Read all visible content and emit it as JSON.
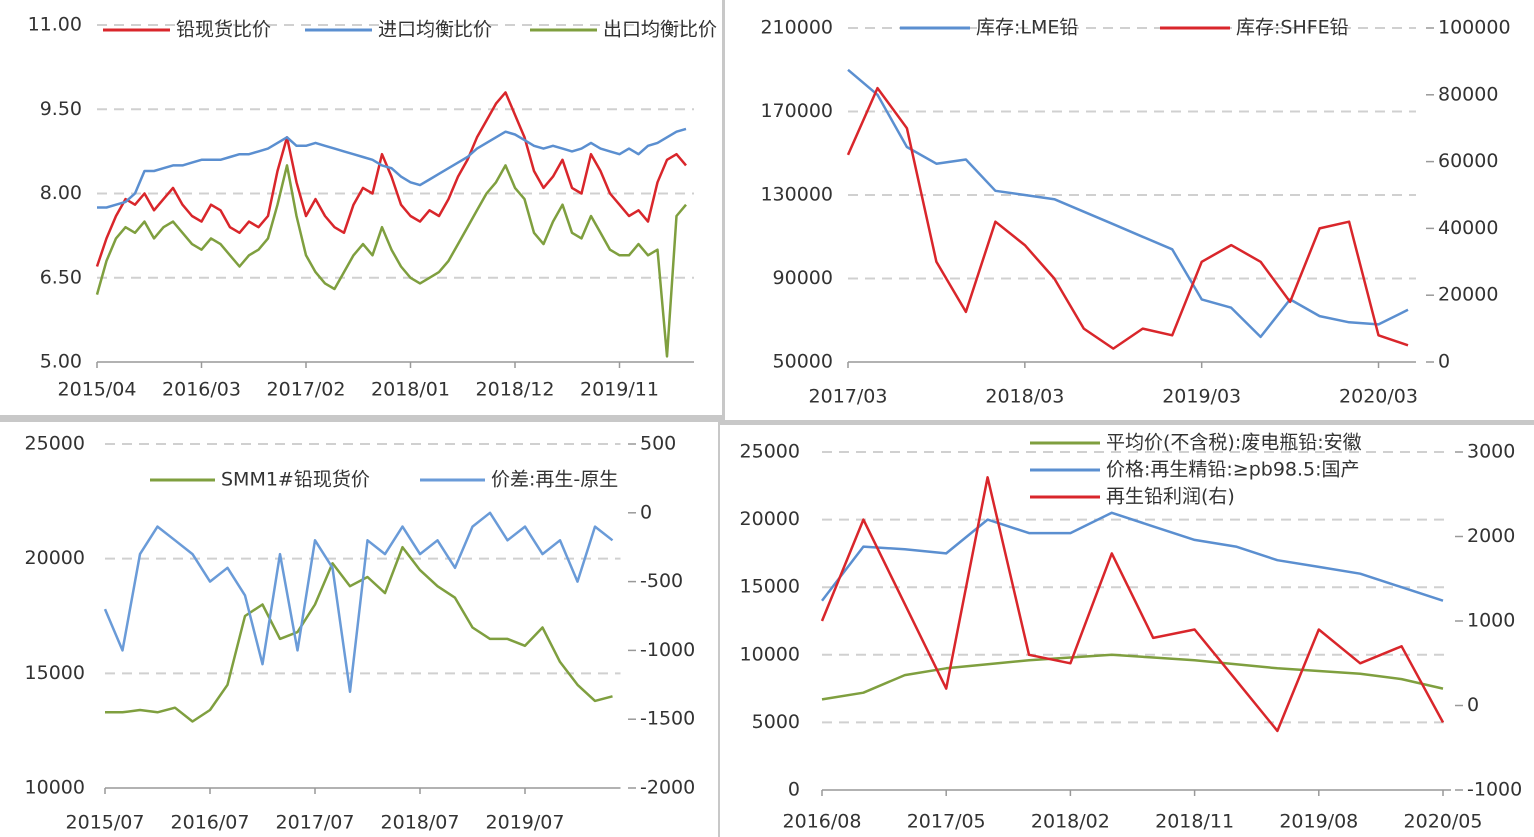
{
  "chart_data": [
    {
      "type": "line",
      "categories": [
        "2015/04",
        null,
        null,
        null,
        null,
        null,
        null,
        null,
        null,
        null,
        null,
        "2016/03",
        null,
        null,
        null,
        null,
        null,
        null,
        null,
        null,
        null,
        null,
        "2017/02",
        null,
        null,
        null,
        null,
        null,
        null,
        null,
        null,
        null,
        null,
        "2018/01",
        null,
        null,
        null,
        null,
        null,
        null,
        null,
        null,
        null,
        null,
        "2018/12",
        null,
        null,
        null,
        null,
        null,
        null,
        null,
        null,
        null,
        null,
        "2019/11",
        null,
        null,
        null,
        null,
        null,
        null,
        null
      ],
      "series": [
        {
          "name": "铅现货比价",
          "color": "#d9262b",
          "values": [
            6.7,
            7.2,
            7.6,
            7.9,
            7.8,
            8.0,
            7.7,
            7.9,
            8.1,
            7.8,
            7.6,
            7.5,
            7.8,
            7.7,
            7.4,
            7.3,
            7.5,
            7.4,
            7.6,
            8.4,
            9.0,
            8.2,
            7.6,
            7.9,
            7.6,
            7.4,
            7.3,
            7.8,
            8.1,
            8.0,
            8.7,
            8.3,
            7.8,
            7.6,
            7.5,
            7.7,
            7.6,
            7.9,
            8.3,
            8.6,
            9.0,
            9.3,
            9.6,
            9.8,
            9.4,
            9.0,
            8.4,
            8.1,
            8.3,
            8.6,
            8.1,
            8.0,
            8.7,
            8.4,
            8.0,
            7.8,
            7.6,
            7.7,
            7.5,
            8.2,
            8.6,
            8.7,
            8.5
          ]
        },
        {
          "name": "进口均衡比价",
          "color": "#5b8fd0",
          "values": [
            7.75,
            7.75,
            7.8,
            7.85,
            8.0,
            8.4,
            8.4,
            8.45,
            8.5,
            8.5,
            8.55,
            8.6,
            8.6,
            8.6,
            8.65,
            8.7,
            8.7,
            8.75,
            8.8,
            8.9,
            9.0,
            8.85,
            8.85,
            8.9,
            8.85,
            8.8,
            8.75,
            8.7,
            8.65,
            8.6,
            8.5,
            8.45,
            8.3,
            8.2,
            8.15,
            8.25,
            8.35,
            8.45,
            8.55,
            8.65,
            8.8,
            8.9,
            9.0,
            9.1,
            9.05,
            8.95,
            8.85,
            8.8,
            8.85,
            8.8,
            8.75,
            8.8,
            8.9,
            8.8,
            8.75,
            8.7,
            8.8,
            8.7,
            8.85,
            8.9,
            9.0,
            9.1,
            9.15
          ]
        },
        {
          "name": "出口均衡比价",
          "color": "#7f9f3f",
          "values": [
            6.2,
            6.8,
            7.2,
            7.4,
            7.3,
            7.5,
            7.2,
            7.4,
            7.5,
            7.3,
            7.1,
            7.0,
            7.2,
            7.1,
            6.9,
            6.7,
            6.9,
            7.0,
            7.2,
            7.8,
            8.5,
            7.6,
            6.9,
            6.6,
            6.4,
            6.3,
            6.6,
            6.9,
            7.1,
            6.9,
            7.4,
            7.0,
            6.7,
            6.5,
            6.4,
            6.5,
            6.6,
            6.8,
            7.1,
            7.4,
            7.7,
            8.0,
            8.2,
            8.5,
            8.1,
            7.9,
            7.3,
            7.1,
            7.5,
            7.8,
            7.3,
            7.2,
            7.6,
            7.3,
            7.0,
            6.9,
            6.9,
            7.1,
            6.9,
            7.0,
            5.1,
            7.6,
            7.8
          ]
        }
      ],
      "ylim": [
        5,
        11
      ],
      "yticks": [
        {
          "value": 5,
          "label": "5.00"
        },
        {
          "value": 6.5,
          "label": "6.50"
        },
        {
          "value": 8,
          "label": "8.00"
        },
        {
          "value": 9.5,
          "label": "9.50"
        },
        {
          "value": 11,
          "label": "11.00"
        }
      ],
      "grid": true
    },
    {
      "type": "line",
      "categories": [
        "2017/03",
        null,
        null,
        null,
        null,
        null,
        "2018/03",
        null,
        null,
        null,
        null,
        null,
        "2019/03",
        null,
        null,
        null,
        null,
        null,
        "2020/03",
        null
      ],
      "series": [
        {
          "name": "库存:LME铅",
          "color": "#5b8fd0",
          "values": [
            190000,
            178000,
            153000,
            145000,
            147000,
            132000,
            130000,
            128000,
            122000,
            116000,
            110000,
            104000,
            80000,
            76000,
            62000,
            80000,
            72000,
            69000,
            68000,
            75000
          ]
        },
        {
          "name": "库存:SHFE铅",
          "color": "#d9262b",
          "axis": "y2",
          "values": [
            62000,
            82000,
            70000,
            30000,
            15000,
            42000,
            35000,
            25000,
            10000,
            4000,
            10000,
            8000,
            30000,
            35000,
            30000,
            18000,
            40000,
            42000,
            8000,
            5000
          ]
        }
      ],
      "ylim": [
        50000,
        210000
      ],
      "yticks": [
        50000,
        90000,
        130000,
        170000,
        210000
      ],
      "y2lim": [
        0,
        100000
      ],
      "y2ticks": [
        0,
        20000,
        40000,
        60000,
        80000,
        100000
      ],
      "grid": true
    },
    {
      "type": "line",
      "categories": [
        "2015/07",
        null,
        null,
        null,
        null,
        null,
        "2016/07",
        null,
        null,
        null,
        null,
        null,
        "2017/07",
        null,
        null,
        null,
        null,
        null,
        "2018/07",
        null,
        null,
        null,
        null,
        null,
        "2019/07",
        null,
        null,
        null,
        null,
        null
      ],
      "series": [
        {
          "name": "SMM1#铅现货价",
          "color": "#7f9f3f",
          "values": [
            13300,
            13300,
            13400,
            13300,
            13500,
            12900,
            13400,
            14500,
            17500,
            18000,
            16500,
            16800,
            18000,
            19800,
            18800,
            19200,
            18500,
            20500,
            19500,
            18800,
            18300,
            17000,
            16500,
            16500,
            16200,
            17000,
            15500,
            14500,
            13800,
            14000
          ]
        },
        {
          "name": "价差:再生-原生",
          "color": "#6a9bd8",
          "axis": "y2",
          "values": [
            -700,
            -1000,
            -300,
            -100,
            -200,
            -300,
            -500,
            -400,
            -600,
            -1100,
            -300,
            -1000,
            -200,
            -400,
            -1300,
            -200,
            -300,
            -100,
            -300,
            -200,
            -400,
            -100,
            0,
            -200,
            -100,
            -300,
            -200,
            -500,
            -100,
            -200
          ]
        }
      ],
      "ylim": [
        10000,
        25000
      ],
      "yticks": [
        10000,
        15000,
        20000,
        25000
      ],
      "y2lim": [
        -2000,
        500
      ],
      "y2ticks": [
        -2000,
        -1500,
        -1000,
        -500,
        0,
        500
      ],
      "grid": true
    },
    {
      "type": "line",
      "categories": [
        "2016/08",
        null,
        null,
        "2017/05",
        null,
        null,
        "2018/02",
        null,
        null,
        "2018/11",
        null,
        null,
        "2019/08",
        null,
        null,
        "2020/05"
      ],
      "series": [
        {
          "name": "平均价(不含税):废电瓶铅:安徽",
          "color": "#7f9f3f",
          "values": [
            6700,
            7200,
            8500,
            9000,
            9300,
            9600,
            9800,
            10000,
            9800,
            9600,
            9300,
            9000,
            8800,
            8600,
            8200,
            7500
          ]
        },
        {
          "name": "价格:再生精铅:≥pb98.5:国产",
          "color": "#5b8fd0",
          "values": [
            14000,
            18000,
            17800,
            17500,
            20000,
            19000,
            19000,
            20500,
            19500,
            18500,
            18000,
            17000,
            16500,
            16000,
            15000,
            14000
          ]
        },
        {
          "name": "再生铅利润(右)",
          "color": "#d9262b",
          "axis": "y2",
          "values": [
            1000,
            2200,
            1200,
            200,
            2700,
            600,
            500,
            1800,
            800,
            900,
            300,
            -300,
            900,
            500,
            700,
            -200
          ]
        }
      ],
      "ylim": [
        0,
        25000
      ],
      "yticks": [
        0,
        5000,
        10000,
        15000,
        20000,
        25000
      ],
      "y2lim": [
        -1000,
        3000
      ],
      "y2ticks": [
        -1000,
        0,
        1000,
        2000,
        3000
      ],
      "grid": true
    }
  ]
}
